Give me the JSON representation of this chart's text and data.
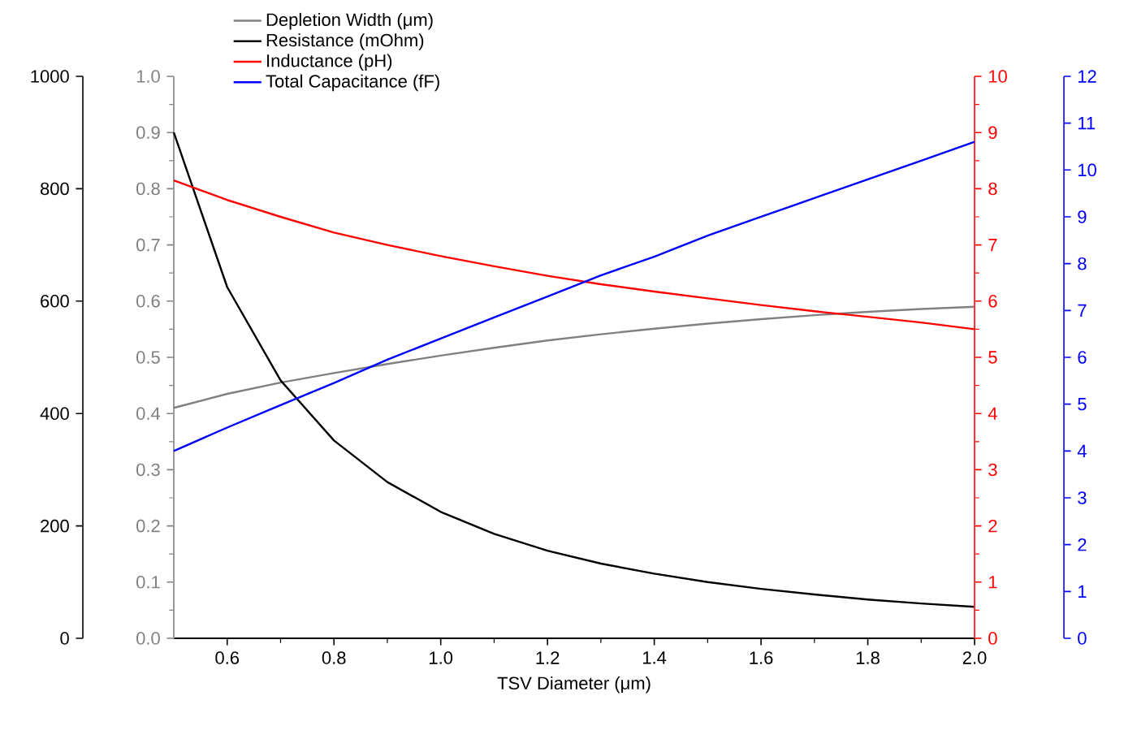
{
  "chart_data": [
    {
      "type": "line",
      "xlabel": "TSV Diameter (μm)",
      "x": [
        0.5,
        0.6,
        0.7,
        0.8,
        0.9,
        1.0,
        1.1,
        1.2,
        1.3,
        1.4,
        1.5,
        1.6,
        1.7,
        1.8,
        1.9,
        2.0
      ],
      "xlim": [
        0.5,
        2.0
      ],
      "xticks": [
        0.6,
        0.8,
        {
          "value": 1.0,
          "label": "1.0"
        },
        1.2,
        1.4,
        1.6,
        1.8,
        {
          "value": 2.0,
          "label": "2.0"
        }
      ],
      "ylim": [
        0,
        1
      ],
      "yticks": [
        {
          "value": 0,
          "label": "0.0"
        },
        0.1,
        0.2,
        0.3,
        0.4,
        0.5,
        0.6,
        0.7,
        0.8,
        0.9,
        {
          "value": 1,
          "label": "1.0"
        }
      ],
      "y2lim": [
        0,
        1000
      ],
      "y2ticks": [
        0,
        200,
        400,
        600,
        800,
        1000
      ],
      "legend": "top",
      "series": [
        {
          "name": "Depletion Width (μm)",
          "color": "#808080",
          "axis": "y",
          "values": [
            0.41,
            0.435,
            0.455,
            0.472,
            0.488,
            0.503,
            0.517,
            0.53,
            0.541,
            0.551,
            0.56,
            0.568,
            0.575,
            0.581,
            0.586,
            0.59
          ]
        },
        {
          "name": "Resistance (mOhm)",
          "color": "#000000",
          "axis": "y2",
          "values": [
            900,
            625,
            459,
            352,
            278,
            225,
            186,
            156,
            133,
            115,
            100,
            88,
            78,
            69,
            62,
            56
          ]
        }
      ]
    },
    {
      "type": "line",
      "x": [
        0.5,
        0.6,
        0.7,
        0.8,
        0.9,
        1.0,
        1.1,
        1.2,
        1.3,
        1.4,
        1.5,
        1.6,
        1.7,
        1.8,
        1.9,
        2.0
      ],
      "xlim": [
        0.5,
        2.0
      ],
      "tick_labels": "y",
      "ylim": [
        0,
        10
      ],
      "yticks": [
        0,
        1,
        2,
        3,
        4,
        5,
        6,
        7,
        8,
        9,
        10
      ],
      "y2lim": [
        0,
        12
      ],
      "y2ticks": [
        0,
        1,
        2,
        3,
        4,
        5,
        6,
        7,
        8,
        9,
        10,
        11,
        12
      ],
      "legend": "top",
      "series": [
        {
          "name": "Inductance (pH)",
          "color": "#ff0000",
          "axis": "y",
          "values": [
            8.15,
            7.8,
            7.5,
            7.22,
            7.0,
            6.8,
            6.62,
            6.45,
            6.3,
            6.17,
            6.05,
            5.93,
            5.82,
            5.72,
            5.62,
            5.5
          ]
        },
        {
          "name": "Total Capacitance (fF)",
          "color": "#0000ff",
          "axis": "y2",
          "values": [
            4.0,
            4.5,
            4.98,
            5.45,
            5.95,
            6.4,
            6.85,
            7.3,
            7.75,
            8.15,
            8.6,
            9.0,
            9.4,
            9.8,
            10.2,
            10.6
          ]
        }
      ]
    }
  ]
}
